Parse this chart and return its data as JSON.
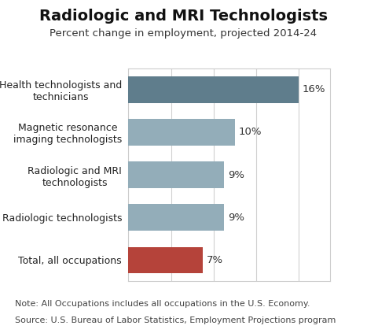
{
  "title": "Radiologic and MRI Technologists",
  "subtitle": "Percent change in employment, projected 2014-24",
  "categories": [
    "Total, all occupations",
    "Radiologic technologists",
    "Radiologic and MRI\ntechnologists",
    "Magnetic resonance\nimaging technologists",
    "Health technologists and\ntechnicians"
  ],
  "values": [
    7,
    9,
    9,
    10,
    16
  ],
  "bar_colors": [
    "#b5433a",
    "#93adb9",
    "#93adb9",
    "#93adb9",
    "#5f7d8c"
  ],
  "label_texts": [
    "7%",
    "9%",
    "9%",
    "10%",
    "16%"
  ],
  "xlim": [
    0,
    19
  ],
  "note_line1": "Note: All Occupations includes all occupations in the U.S. Economy.",
  "note_line2": "Source: U.S. Bureau of Labor Statistics, Employment Projections program",
  "background_color": "#ffffff",
  "bar_height": 0.62,
  "title_fontsize": 14,
  "subtitle_fontsize": 9.5,
  "tick_label_fontsize": 9,
  "value_label_fontsize": 9.5,
  "note_fontsize": 8,
  "grid_color": "#d0d0d0",
  "border_color": "#cccccc"
}
